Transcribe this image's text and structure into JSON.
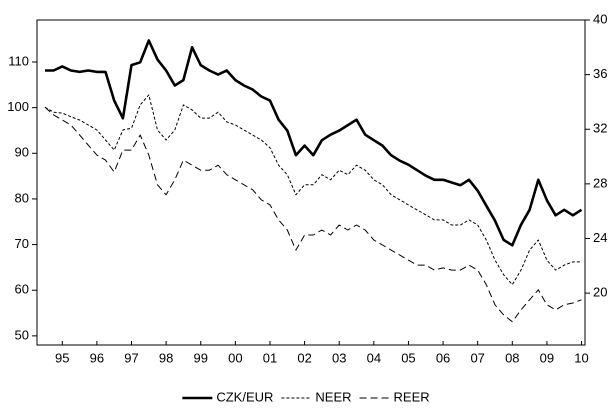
{
  "chart_data": {
    "type": "line",
    "x": [
      1995,
      1995.25,
      1995.5,
      1995.75,
      1996,
      1996.25,
      1996.5,
      1996.75,
      1997,
      1997.25,
      1997.5,
      1997.75,
      1998,
      1998.25,
      1998.5,
      1998.75,
      1999,
      1999.25,
      1999.5,
      1999.75,
      2000,
      2000.25,
      2000.5,
      2000.75,
      2001,
      2001.25,
      2001.5,
      2001.75,
      2002,
      2002.25,
      2002.5,
      2002.75,
      2003,
      2003.25,
      2003.5,
      2003.75,
      2004,
      2004.25,
      2004.5,
      2004.75,
      2005,
      2005.25,
      2005.5,
      2005.75,
      2006,
      2006.25,
      2006.5,
      2006.75,
      2007,
      2007.25,
      2007.5,
      2007.75,
      2008,
      2008.25,
      2008.5,
      2008.75,
      2009,
      2009.25,
      2009.5,
      2009.75,
      2010,
      2010.25,
      2010.5
    ],
    "series": [
      {
        "name": "CZK/EUR",
        "color": "#000000",
        "style": "solid",
        "axis": "y2",
        "values": [
          36.3,
          36.3,
          36.6,
          36.3,
          36.2,
          36.3,
          36.2,
          36.2,
          34.1,
          32.8,
          36.7,
          36.9,
          38.5,
          37.1,
          36.3,
          35.2,
          35.6,
          38.0,
          36.7,
          36.3,
          36.0,
          36.3,
          35.6,
          35.2,
          34.9,
          34.4,
          34.1,
          32.7,
          31.9,
          30.1,
          30.8,
          30.1,
          31.2,
          31.6,
          31.9,
          32.3,
          32.7,
          31.6,
          31.2,
          30.8,
          30.1,
          29.7,
          29.4,
          29.0,
          28.6,
          28.3,
          28.3,
          28.1,
          27.9,
          28.3,
          27.5,
          26.4,
          25.3,
          23.9,
          23.5,
          25.0,
          26.1,
          28.3,
          26.8,
          25.7,
          26.1,
          25.7,
          26.1
        ]
      },
      {
        "name": "NEER",
        "color": "#000000",
        "style": "dotted",
        "values": [
          100.1,
          99.0,
          98.8,
          98.0,
          97.3,
          96.2,
          95.1,
          92.9,
          90.7,
          95.1,
          95.5,
          100.6,
          102.8,
          95.1,
          92.9,
          95.1,
          100.6,
          99.5,
          97.7,
          97.7,
          99.0,
          96.9,
          96.2,
          95.1,
          94.0,
          92.9,
          91.2,
          87.4,
          85.3,
          80.9,
          83.1,
          83.1,
          85.3,
          84.2,
          86.3,
          85.3,
          87.4,
          86.3,
          84.2,
          83.1,
          80.9,
          79.8,
          78.7,
          77.6,
          76.5,
          75.4,
          75.4,
          74.3,
          74.3,
          75.4,
          74.3,
          71.0,
          66.6,
          63.4,
          61.2,
          64.4,
          68.8,
          71.0,
          66.6,
          64.4,
          65.5,
          66.2,
          66.2
        ]
      },
      {
        "name": "REER",
        "color": "#000000",
        "style": "dashed",
        "values": [
          100.1,
          98.4,
          97.3,
          96.2,
          94.0,
          91.8,
          89.6,
          88.5,
          85.9,
          90.7,
          90.7,
          94.0,
          89.6,
          83.1,
          80.9,
          84.2,
          88.5,
          87.4,
          86.3,
          86.3,
          87.4,
          85.3,
          84.2,
          83.1,
          82.0,
          79.8,
          78.7,
          75.4,
          73.2,
          68.8,
          72.1,
          72.1,
          73.2,
          72.1,
          74.3,
          73.2,
          74.3,
          73.2,
          71.0,
          69.9,
          68.8,
          67.7,
          66.6,
          65.5,
          65.5,
          64.4,
          64.9,
          64.4,
          64.4,
          65.5,
          64.4,
          61.2,
          56.8,
          54.6,
          53.1,
          55.7,
          57.9,
          60.1,
          56.8,
          55.7,
          56.8,
          57.2,
          57.9
        ]
      }
    ],
    "xlim": [
      1994.77,
      2010.6
    ],
    "xticks": [
      {
        "value": 1995.5,
        "label": "95"
      },
      {
        "value": 1996.5,
        "label": "96"
      },
      {
        "value": 1997.5,
        "label": "97"
      },
      {
        "value": 1998.5,
        "label": "98"
      },
      {
        "value": 1999.5,
        "label": "99"
      },
      {
        "value": 2000.5,
        "label": "00"
      },
      {
        "value": 2001.5,
        "label": "01"
      },
      {
        "value": 2002.5,
        "label": "02"
      },
      {
        "value": 2003.5,
        "label": "03"
      },
      {
        "value": 2004.5,
        "label": "04"
      },
      {
        "value": 2005.5,
        "label": "05"
      },
      {
        "value": 2006.5,
        "label": "06"
      },
      {
        "value": 2007.5,
        "label": "07"
      },
      {
        "value": 2008.5,
        "label": "08"
      },
      {
        "value": 2009.5,
        "label": "09"
      },
      {
        "value": 2010.5,
        "label": "10"
      }
    ],
    "ylim": [
      48,
      119.2
    ],
    "yticks": [
      50,
      60,
      70,
      80,
      90,
      100,
      110
    ],
    "y2lim": [
      16.2,
      40
    ],
    "y2ticks": [
      20,
      24,
      28,
      32,
      36,
      40
    ],
    "legend": "bottom"
  }
}
